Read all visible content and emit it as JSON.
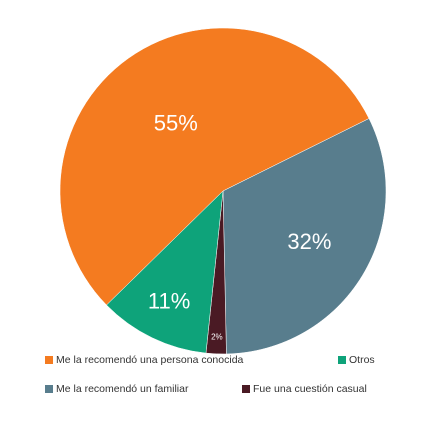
{
  "chart_data": {
    "type": "pie",
    "categories": [
      "Me la recomendó una persona conocida",
      "Me la recomendó un familiar",
      "Fue una cuestión casual",
      "Otros"
    ],
    "values": [
      55,
      32,
      2,
      11
    ],
    "value_labels": [
      "55%",
      "32%",
      "2%",
      "11%"
    ],
    "colors": [
      "#f47b20",
      "#587d8d",
      "#4a1a24",
      "#0ea37a"
    ]
  }
}
